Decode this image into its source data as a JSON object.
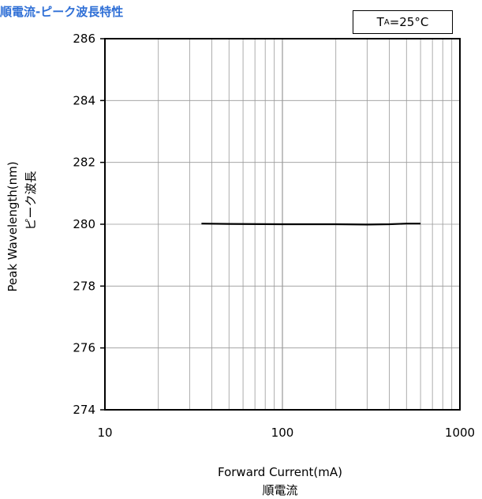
{
  "title": "順電流-ピーク波長特性",
  "condition": {
    "label": "T",
    "subscript": "A",
    "value": "=25°C"
  },
  "colors": {
    "title": "#2f6fd6",
    "line": "#000000",
    "grid": "#999999"
  },
  "chart_data": {
    "type": "line",
    "title": "順電流-ピーク波長特性",
    "xlabel": "Forward Current(mA)",
    "xlabel_jp": "順電流",
    "ylabel": "Peak Wavelength(nm)",
    "ylabel_jp": "ピーク波長",
    "x_scale": "log",
    "xlim": [
      10,
      1000
    ],
    "ylim": [
      274,
      286
    ],
    "x_ticks": [
      "10",
      "100",
      "1000"
    ],
    "y_ticks": [
      "274",
      "276",
      "278",
      "280",
      "282",
      "284",
      "286"
    ],
    "grid": true,
    "series": [
      {
        "x": [
          35,
          50,
          100,
          200,
          300,
          400,
          500,
          600
        ],
        "y": [
          280.02,
          280.01,
          280.0,
          280.0,
          279.99,
          280.0,
          280.02,
          280.02
        ]
      }
    ]
  }
}
